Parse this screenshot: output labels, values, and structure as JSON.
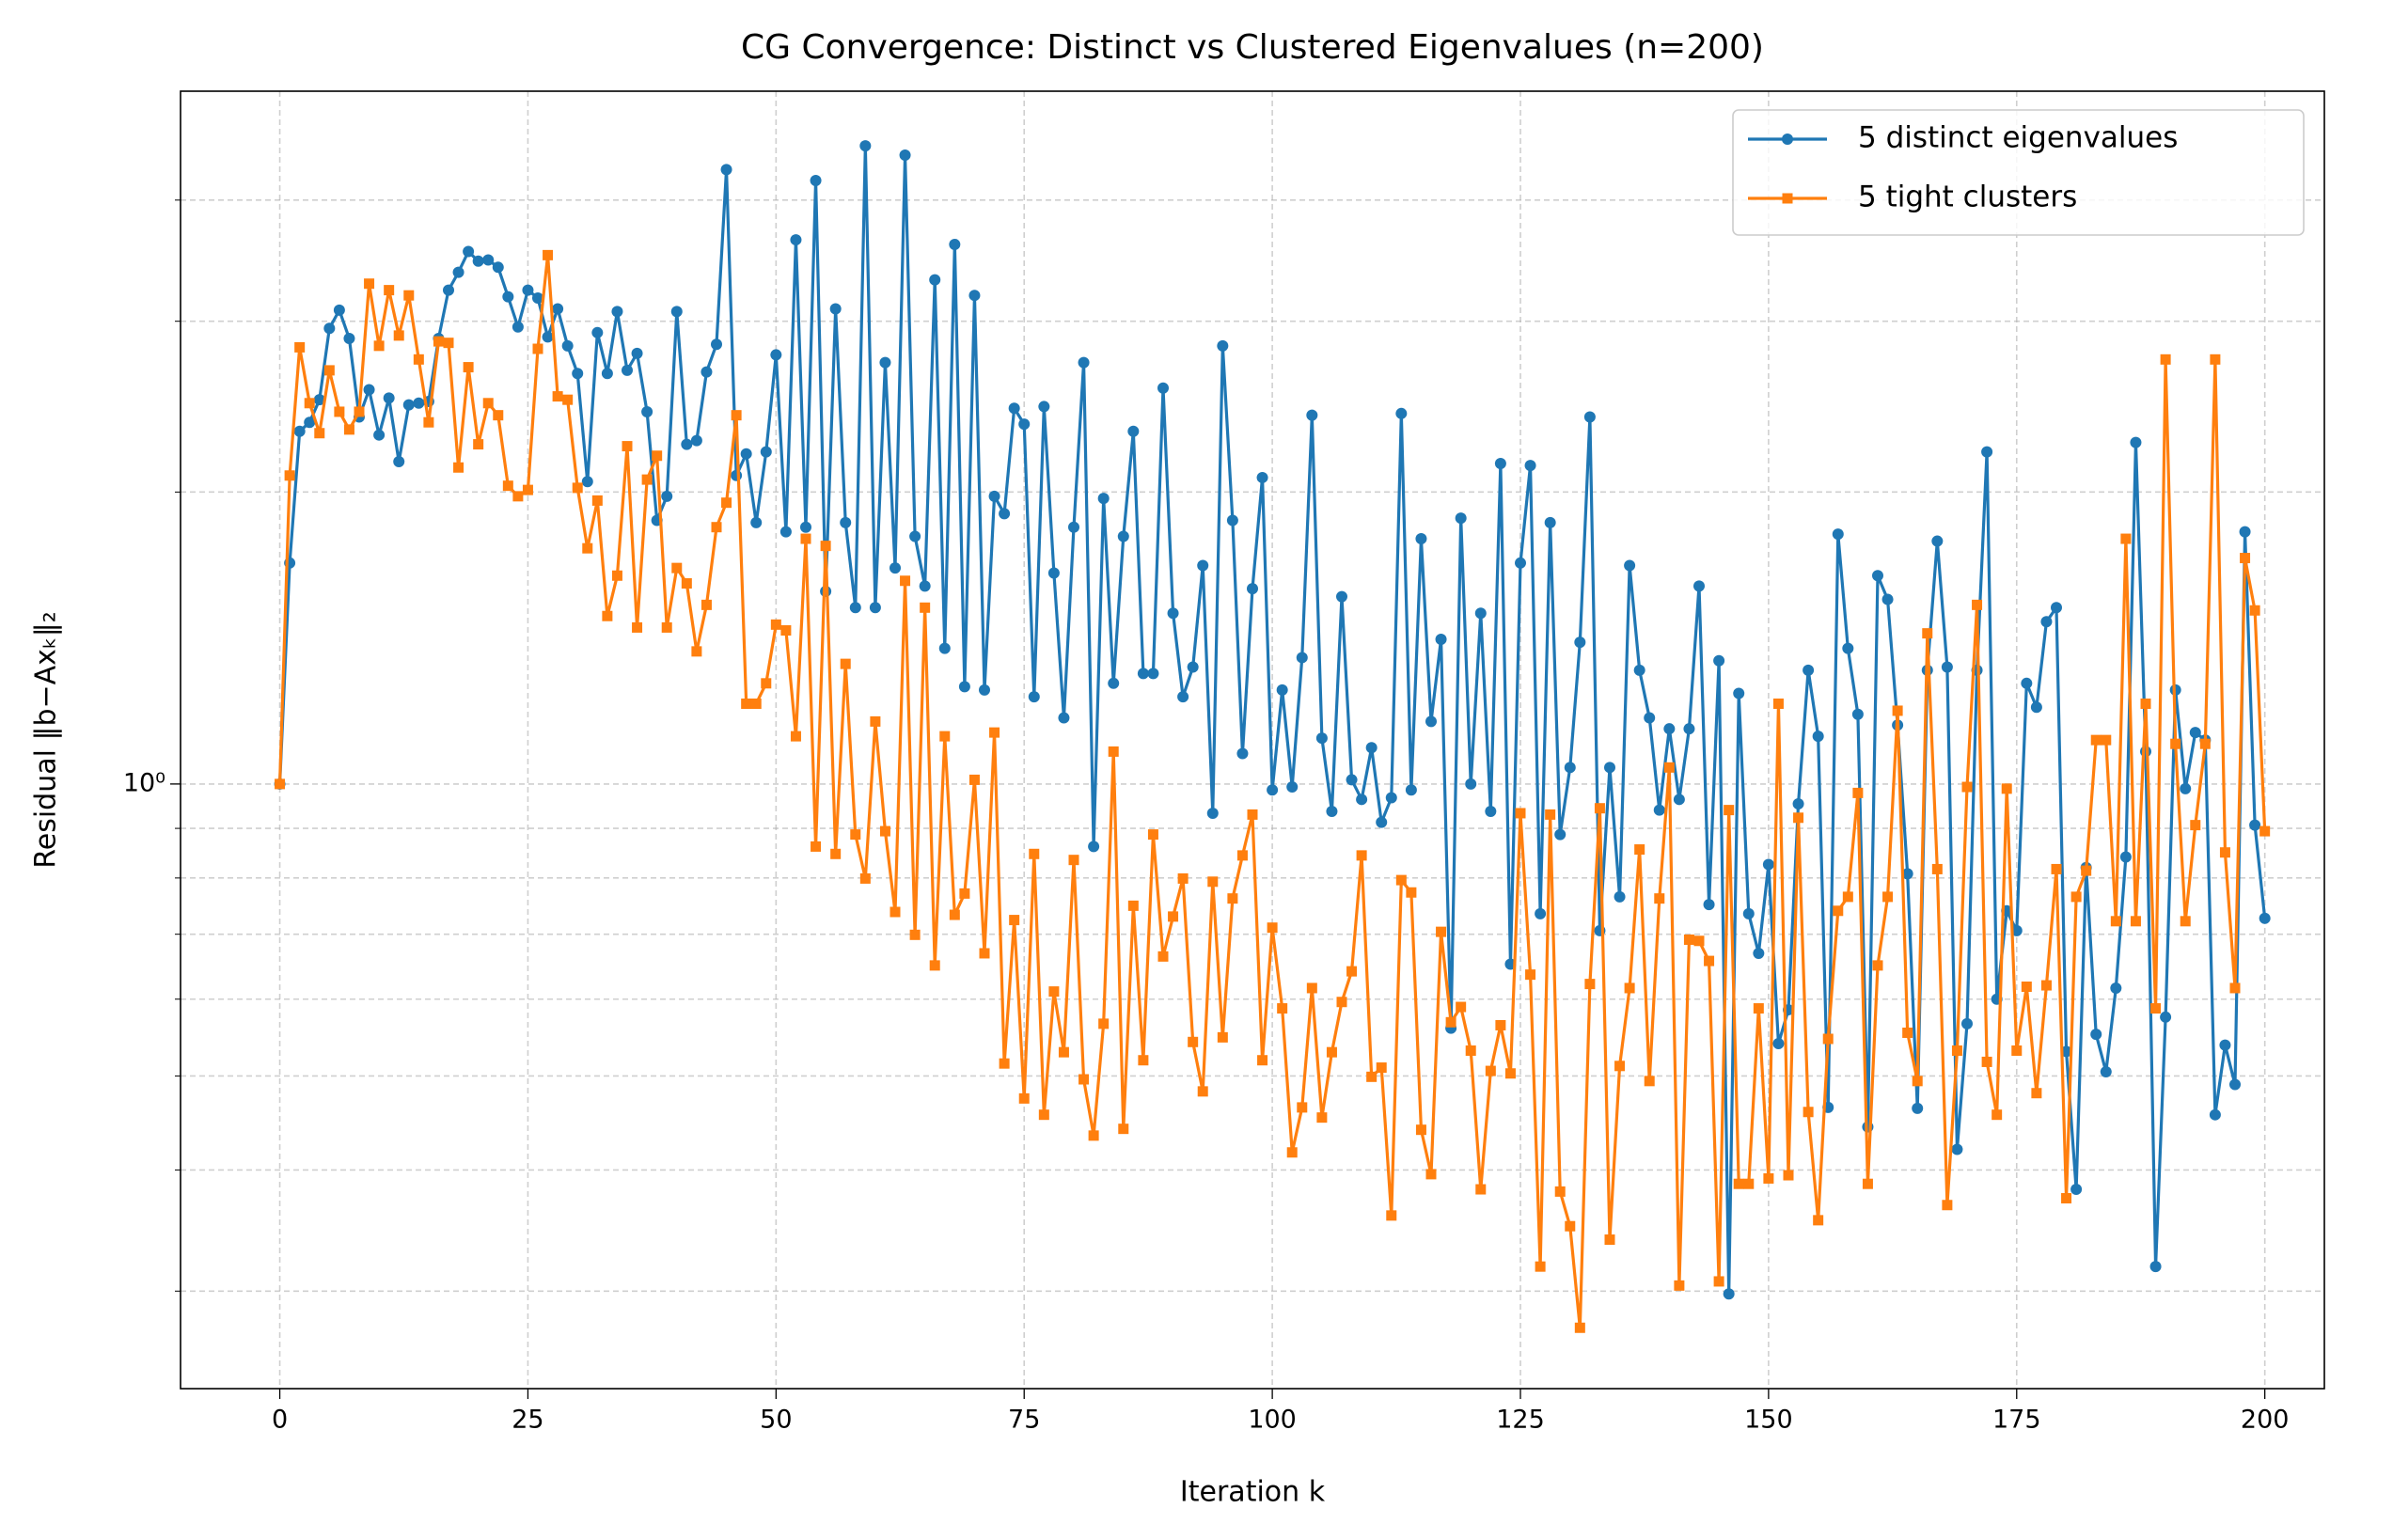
{
  "chart_data": {
    "type": "line",
    "title": "CG Convergence: Distinct vs Clustered Eigenvalues (n=200)",
    "xlabel": "Iteration k",
    "ylabel": "Residual ‖b−Axₖ‖₂",
    "yscale": "log",
    "grid": true,
    "legend_loc": "upper right",
    "xlim": [
      -10,
      206
    ],
    "ylim": [
      0.238,
      5.18
    ],
    "xticks": [
      0,
      25,
      50,
      75,
      100,
      125,
      150,
      175,
      200
    ],
    "yticks": [
      {
        "value": 1,
        "label": "10⁰"
      }
    ],
    "yticks_minor": [
      0.3,
      0.4,
      0.5,
      0.6,
      0.7,
      0.8,
      0.9,
      2,
      3,
      4
    ],
    "x": [
      0,
      1,
      2,
      3,
      4,
      5,
      6,
      7,
      8,
      9,
      10,
      11,
      12,
      13,
      14,
      15,
      16,
      17,
      18,
      19,
      20,
      21,
      22,
      23,
      24,
      25,
      26,
      27,
      28,
      29,
      30,
      31,
      32,
      33,
      34,
      35,
      36,
      37,
      38,
      39,
      40,
      41,
      42,
      43,
      44,
      45,
      46,
      47,
      48,
      49,
      50,
      51,
      52,
      53,
      54,
      55,
      56,
      57,
      58,
      59,
      60,
      61,
      62,
      63,
      64,
      65,
      66,
      67,
      68,
      69,
      70,
      71,
      72,
      73,
      74,
      75,
      76,
      77,
      78,
      79,
      80,
      81,
      82,
      83,
      84,
      85,
      86,
      87,
      88,
      89,
      90,
      91,
      92,
      93,
      94,
      95,
      96,
      97,
      98,
      99,
      100,
      101,
      102,
      103,
      104,
      105,
      106,
      107,
      108,
      109,
      110,
      111,
      112,
      113,
      114,
      115,
      116,
      117,
      118,
      119,
      120,
      121,
      122,
      123,
      124,
      125,
      126,
      127,
      128,
      129,
      130,
      131,
      132,
      133,
      134,
      135,
      136,
      137,
      138,
      139,
      140,
      141,
      142,
      143,
      144,
      145,
      146,
      147,
      148,
      149,
      150,
      151,
      152,
      153,
      154,
      155,
      156,
      157,
      158,
      159,
      160,
      161,
      162,
      163,
      164,
      165,
      166,
      167,
      168,
      169,
      170,
      171,
      172,
      173,
      174,
      175,
      176,
      177,
      178,
      179,
      180,
      181,
      182,
      183,
      184,
      185,
      186,
      187,
      188,
      189,
      190,
      191,
      192,
      193,
      194,
      195,
      196,
      197,
      198,
      199,
      200
    ],
    "series": [
      {
        "name": "5 distinct eigenvalues",
        "color": "#1f77b4",
        "marker": "circle",
        "values": [
          1,
          1.69,
          2.31,
          2.36,
          2.49,
          2.95,
          3.08,
          2.88,
          2.39,
          2.55,
          2.29,
          2.5,
          2.15,
          2.46,
          2.47,
          2.48,
          2.88,
          3.23,
          3.37,
          3.54,
          3.46,
          3.47,
          3.41,
          3.18,
          2.96,
          3.23,
          3.17,
          2.89,
          3.09,
          2.83,
          2.65,
          2.05,
          2.92,
          2.65,
          3.07,
          2.67,
          2.78,
          2.42,
          1.87,
          1.98,
          3.07,
          2.24,
          2.26,
          2.66,
          2.84,
          4.3,
          2.08,
          2.19,
          1.86,
          2.2,
          2.77,
          1.82,
          3.64,
          1.84,
          4.19,
          1.58,
          3.09,
          1.86,
          1.52,
          4.55,
          1.52,
          2.72,
          1.67,
          4.45,
          1.8,
          1.6,
          3.31,
          1.38,
          3.6,
          1.26,
          3.19,
          1.25,
          1.98,
          1.9,
          2.44,
          2.35,
          1.23,
          2.45,
          1.65,
          1.17,
          1.84,
          2.72,
          0.862,
          1.97,
          1.27,
          1.8,
          2.31,
          1.3,
          1.3,
          2.56,
          1.5,
          1.23,
          1.32,
          1.68,
          0.933,
          2.83,
          1.87,
          1.075,
          1.59,
          2.07,
          0.986,
          1.25,
          0.993,
          1.35,
          2.4,
          1.115,
          0.937,
          1.56,
          1.01,
          0.964,
          1.09,
          0.913,
          0.968,
          2.41,
          0.986,
          1.79,
          1.16,
          1.41,
          0.56,
          1.88,
          1,
          1.5,
          0.937,
          2.14,
          0.652,
          1.69,
          2.13,
          0.735,
          1.86,
          0.887,
          1.04,
          1.4,
          2.39,
          0.706,
          1.04,
          0.765,
          1.68,
          1.31,
          1.17,
          0.94,
          1.14,
          0.964,
          1.14,
          1.6,
          0.751,
          1.34,
          0.298,
          1.24,
          0.735,
          0.669,
          0.826,
          0.54,
          0.585,
          0.954,
          1.31,
          1.12,
          0.464,
          1.81,
          1.38,
          1.18,
          0.443,
          1.64,
          1.55,
          1.15,
          0.808,
          0.463,
          1.31,
          1.78,
          1.32,
          0.42,
          0.566,
          1.31,
          2.2,
          0.6,
          0.74,
          0.706,
          1.27,
          1.2,
          1.47,
          1.52,
          0.53,
          0.382,
          0.82,
          0.552,
          0.505,
          0.616,
          0.841,
          2.25,
          1.08,
          0.318,
          0.575,
          1.25,
          0.989,
          1.13,
          1.11,
          0.456,
          0.538,
          0.49,
          1.82,
          0.907,
          0.727
        ]
      },
      {
        "name": "5 tight clusters",
        "color": "#ff7f0e",
        "marker": "square",
        "values": [
          1,
          2.08,
          2.82,
          2.47,
          2.3,
          2.67,
          2.42,
          2.32,
          2.42,
          3.28,
          2.83,
          3.23,
          2.9,
          3.19,
          2.74,
          2.36,
          2.86,
          2.85,
          2.12,
          2.69,
          2.24,
          2.47,
          2.4,
          2.03,
          1.98,
          2.01,
          2.81,
          3.51,
          2.51,
          2.49,
          2.02,
          1.75,
          1.96,
          1.49,
          1.64,
          2.23,
          1.45,
          2.06,
          2.18,
          1.45,
          1.67,
          1.61,
          1.37,
          1.53,
          1.84,
          1.95,
          2.4,
          1.21,
          1.21,
          1.27,
          1.46,
          1.44,
          1.12,
          1.79,
          0.862,
          1.76,
          0.847,
          1.33,
          0.887,
          0.799,
          1.16,
          0.894,
          0.738,
          1.62,
          0.699,
          1.52,
          0.65,
          1.12,
          0.733,
          0.771,
          1.01,
          0.669,
          1.13,
          0.515,
          0.724,
          0.474,
          0.847,
          0.456,
          0.611,
          0.529,
          0.835,
          0.496,
          0.434,
          0.566,
          1.08,
          0.441,
          0.749,
          0.519,
          0.887,
          0.664,
          0.73,
          0.799,
          0.542,
          0.482,
          0.793,
          0.548,
          0.762,
          0.844,
          0.93,
          0.519,
          0.711,
          0.587,
          0.417,
          0.464,
          0.616,
          0.453,
          0.529,
          0.596,
          0.641,
          0.844,
          0.499,
          0.51,
          0.359,
          0.796,
          0.773,
          0.44,
          0.396,
          0.704,
          0.568,
          0.589,
          0.531,
          0.382,
          0.506,
          0.564,
          0.503,
          0.933,
          0.636,
          0.318,
          0.93,
          0.38,
          0.35,
          0.275,
          0.622,
          0.944,
          0.339,
          0.512,
          0.616,
          0.856,
          0.494,
          0.762,
          1.04,
          0.304,
          0.691,
          0.689,
          0.657,
          0.307,
          0.94,
          0.387,
          0.387,
          0.587,
          0.392,
          1.21,
          0.395,
          0.923,
          0.459,
          0.355,
          0.546,
          0.74,
          0.765,
          0.979,
          0.387,
          0.65,
          0.765,
          1.19,
          0.554,
          0.494,
          1.43,
          0.817,
          0.368,
          0.531,
          0.993,
          1.53,
          0.517,
          0.456,
          0.989,
          0.531,
          0.618,
          0.48,
          0.62,
          0.817,
          0.374,
          0.765,
          0.814,
          1.11,
          1.11,
          0.722,
          1.79,
          0.722,
          1.21,
          0.587,
          2.74,
          1.1,
          0.722,
          0.907,
          1.1,
          2.74,
          0.85,
          0.616,
          1.71,
          1.51,
          0.894
        ]
      }
    ]
  }
}
